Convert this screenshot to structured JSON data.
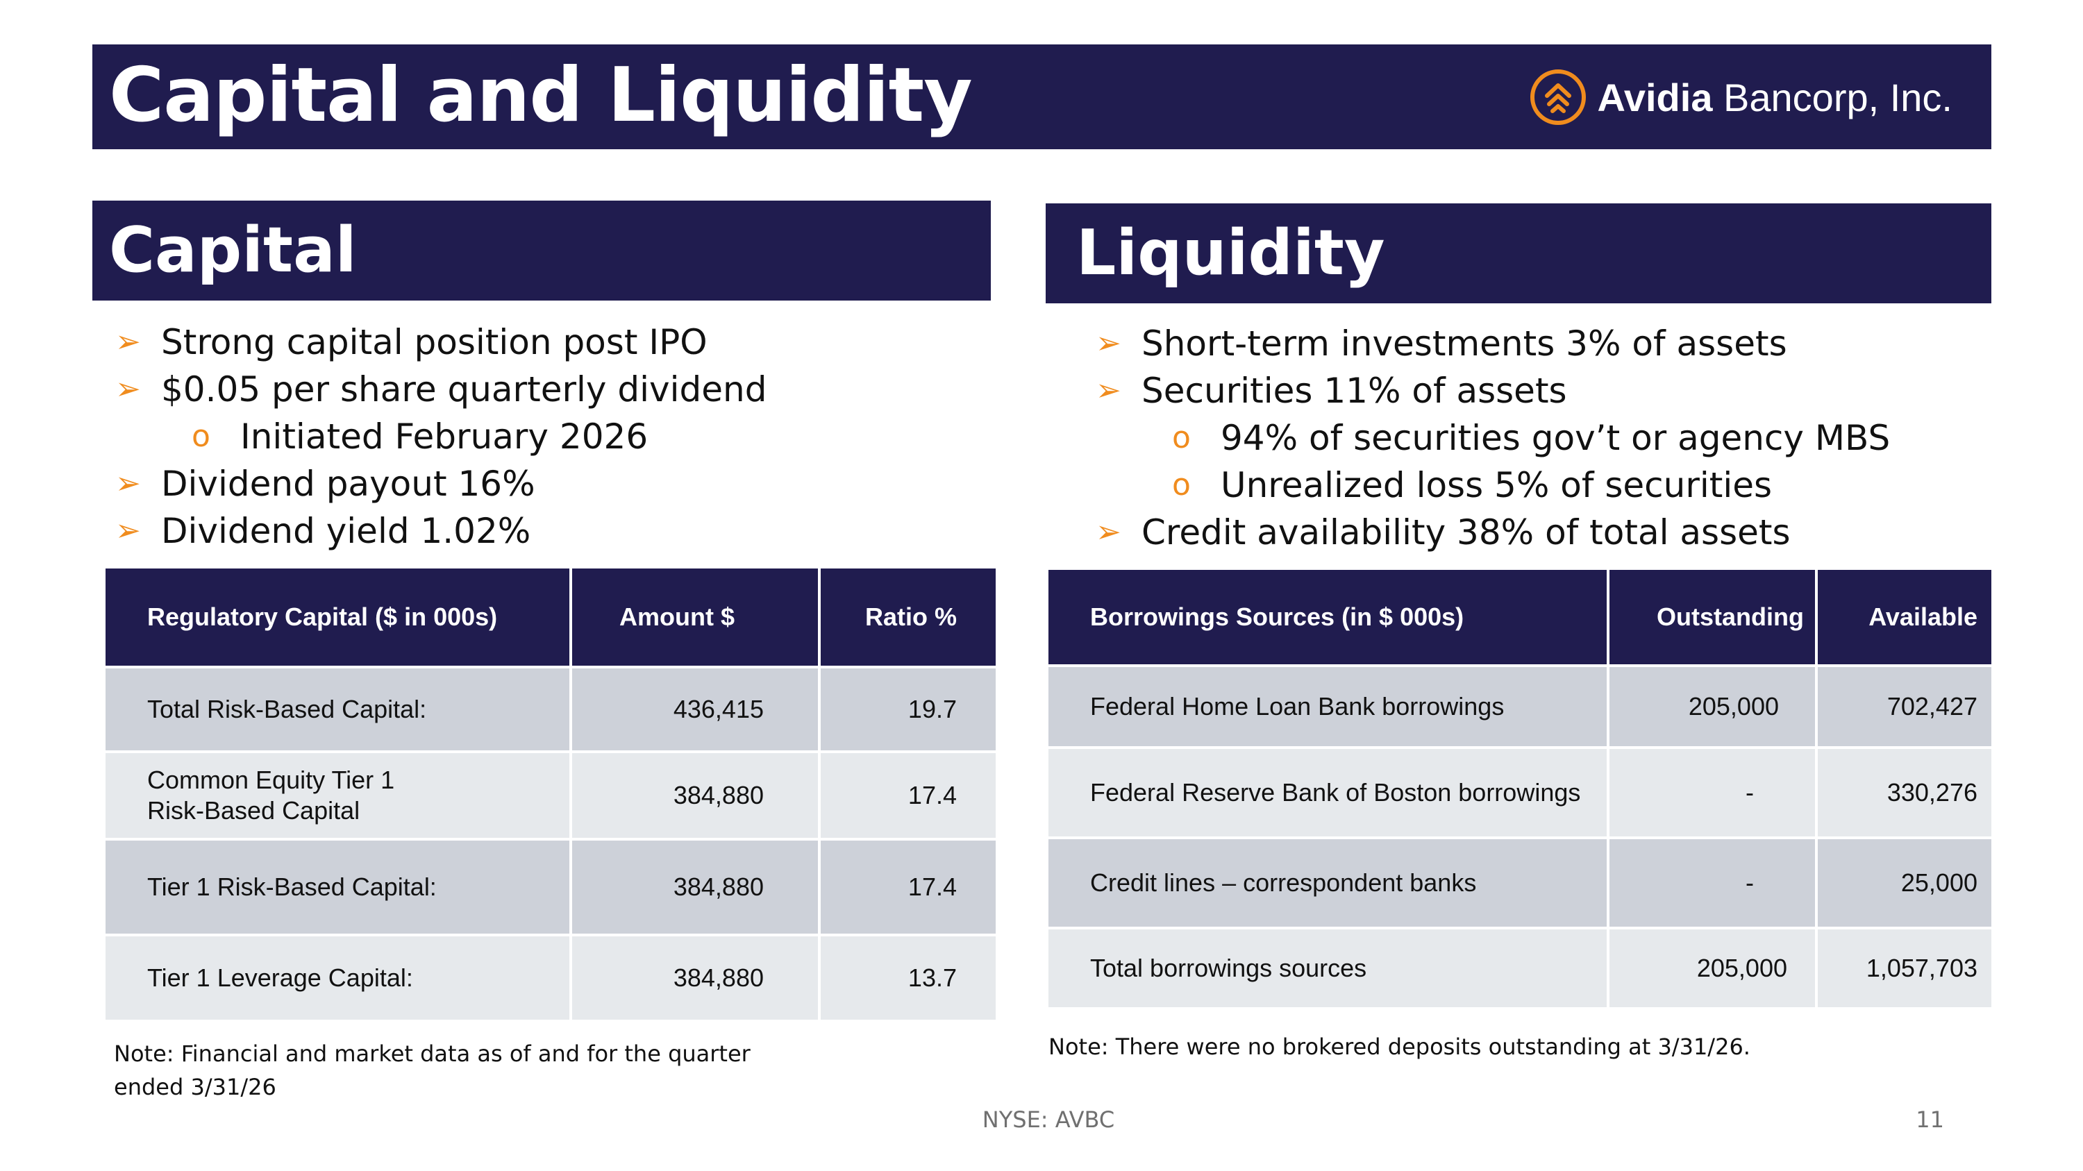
{
  "header": {
    "title": "Capital and Liquidity",
    "logo_bold": "Avidia",
    "logo_light": "Bancorp, Inc.",
    "brand_color": "#201c4f",
    "accent_color": "#f08c1e"
  },
  "capital": {
    "heading": "Capital",
    "bullets": [
      "Strong capital position post IPO",
      "$0.05 per share quarterly dividend",
      "Initiated February 2026",
      "Dividend payout 16%",
      "Dividend yield 1.02%"
    ],
    "table": {
      "headers": [
        "Regulatory Capital ($ in 000s)",
        "Amount $",
        "Ratio %"
      ],
      "rows": [
        {
          "label": "Total Risk-Based Capital:",
          "amount": "436,415",
          "ratio": "19.7"
        },
        {
          "label_line1": "Common Equity Tier 1",
          "label_line2": "Risk-Based Capital",
          "amount": "384,880",
          "ratio": "17.4"
        },
        {
          "label": "Tier 1 Risk-Based Capital:",
          "amount": "384,880",
          "ratio": "17.4"
        },
        {
          "label": "Tier 1 Leverage Capital:",
          "amount": "384,880",
          "ratio": "13.7"
        }
      ]
    },
    "note_line1": "Note:  Financial and market data as of and for the quarter",
    "note_line2": "ended  3/31/26"
  },
  "liquidity": {
    "heading": "Liquidity",
    "bullets": [
      "Short-term investments 3% of assets",
      "Securities 11% of assets",
      "94% of securities gov’t or agency MBS",
      "Unrealized loss 5% of securities",
      "Credit availability 38% of total assets"
    ],
    "table": {
      "headers": [
        "Borrowings Sources (in $ 000s)",
        "Outstanding",
        "Available"
      ],
      "rows": [
        {
          "label": "Federal Home Loan Bank borrowings",
          "outstanding": "205,000",
          "available": "702,427"
        },
        {
          "label": "Federal Reserve Bank of Boston borrowings",
          "outstanding": "-",
          "available": "330,276"
        },
        {
          "label": "Credit lines – correspondent banks",
          "outstanding": "-",
          "available": "25,000"
        },
        {
          "label": "Total borrowings sources",
          "outstanding": "205,000",
          "available": "1,057,703"
        }
      ]
    },
    "note": "Note:  There were no brokered deposits outstanding at 3/31/26."
  },
  "footer": {
    "ticker": "NYSE: AVBC",
    "page_number": "11"
  }
}
